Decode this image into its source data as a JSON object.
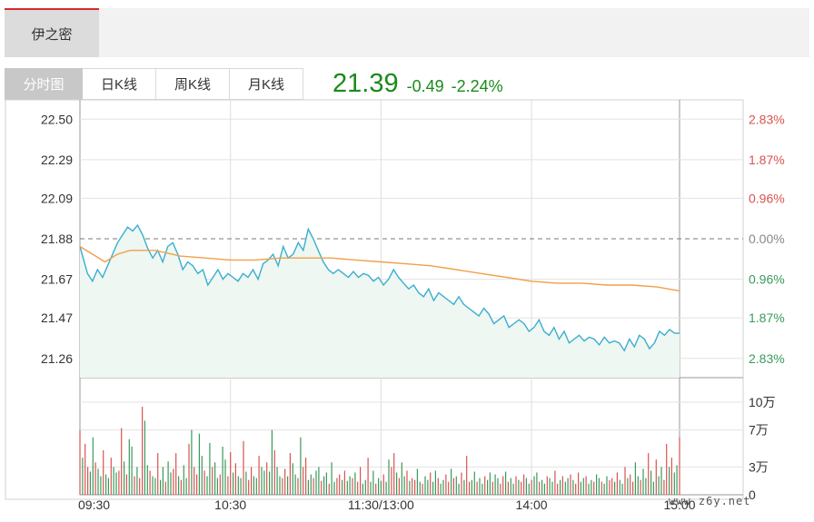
{
  "stock": {
    "name": "伊之密"
  },
  "tabs": [
    {
      "label": "分时图",
      "active": true
    },
    {
      "label": "日K线",
      "active": false
    },
    {
      "label": "周K线",
      "active": false
    },
    {
      "label": "月K线",
      "active": false
    }
  ],
  "quote": {
    "price": "21.39",
    "change": "-0.49",
    "change_pct": "-2.24%",
    "color": "#1b8a1b"
  },
  "watermark": "www.z6y.net",
  "colors": {
    "up": "#d9534f",
    "down": "#3a9a5b",
    "price_line": "#3aaed0",
    "avg_line": "#f0a04b",
    "fill": "#eef7f1"
  },
  "chart_data": {
    "type": "line",
    "title": "",
    "prev_close": 21.88,
    "price_ticks": [
      "22.50",
      "22.29",
      "22.09",
      "21.88",
      "21.67",
      "21.47",
      "21.26"
    ],
    "pct_ticks": [
      "2.83%",
      "1.87%",
      "0.96%",
      "0.00%",
      "0.96%",
      "1.87%",
      "2.83%"
    ],
    "volume_ticks": [
      "10万",
      "7万",
      "3万",
      "0"
    ],
    "x_ticks": [
      "09:30",
      "10:30",
      "11:30/13:00",
      "14:00",
      "15:00"
    ],
    "ylim": [
      21.16,
      22.6
    ],
    "volume_max": 100000,
    "series": [
      {
        "name": "",
        "time_index": [
          0,
          3,
          5,
          7,
          9,
          11,
          13,
          15,
          17,
          19,
          21,
          23,
          25,
          27,
          29,
          31,
          33,
          35,
          37,
          39,
          41,
          43,
          45,
          47,
          49,
          51,
          53,
          55,
          57,
          59,
          61,
          63,
          65,
          67,
          69,
          71,
          73,
          75,
          77,
          79,
          81,
          83,
          85,
          87,
          89,
          91,
          93,
          95,
          97,
          99,
          101,
          103,
          105,
          107,
          109,
          111,
          113,
          115,
          117,
          119,
          121,
          123,
          125,
          127,
          129,
          131,
          133,
          135,
          137,
          139,
          141,
          143,
          145,
          147,
          149,
          151,
          153,
          155,
          157,
          159,
          161,
          163,
          165,
          167,
          169,
          171,
          173,
          175,
          177,
          179,
          181,
          183,
          185,
          187,
          189,
          191,
          193,
          195,
          197,
          199,
          201,
          203,
          205,
          207,
          209,
          211,
          213,
          215,
          217,
          219,
          221,
          223,
          225,
          227,
          229,
          231,
          233,
          235,
          237,
          239
        ],
        "values": [
          21.84,
          21.7,
          21.66,
          21.72,
          21.68,
          21.74,
          21.8,
          21.86,
          21.9,
          21.94,
          21.92,
          21.95,
          21.9,
          21.83,
          21.78,
          21.82,
          21.76,
          21.84,
          21.86,
          21.8,
          21.72,
          21.76,
          21.74,
          21.7,
          21.72,
          21.64,
          21.68,
          21.72,
          21.67,
          21.7,
          21.68,
          21.66,
          21.7,
          21.68,
          21.72,
          21.67,
          21.75,
          21.77,
          21.8,
          21.74,
          21.84,
          21.78,
          21.8,
          21.86,
          21.82,
          21.93,
          21.88,
          21.82,
          21.76,
          21.72,
          21.7,
          21.72,
          21.7,
          21.68,
          21.71,
          21.68,
          21.7,
          21.69,
          21.66,
          21.68,
          21.64,
          21.67,
          21.72,
          21.68,
          21.65,
          21.62,
          21.64,
          21.6,
          21.58,
          21.62,
          21.56,
          21.6,
          21.58,
          21.56,
          21.54,
          21.58,
          21.54,
          21.52,
          21.5,
          21.48,
          21.52,
          21.49,
          21.44,
          21.46,
          21.48,
          21.42,
          21.44,
          21.46,
          21.44,
          21.4,
          21.42,
          21.46,
          21.4,
          21.38,
          21.42,
          21.36,
          21.4,
          21.34,
          21.36,
          21.38,
          21.35,
          21.37,
          21.36,
          21.33,
          21.37,
          21.34,
          21.35,
          21.34,
          21.3,
          21.36,
          21.32,
          21.38,
          21.36,
          21.31,
          21.34,
          21.4,
          21.38,
          21.41,
          21.39,
          21.39
        ]
      },
      {
        "name": "",
        "time_index": [
          0,
          5,
          10,
          15,
          20,
          25,
          30,
          40,
          50,
          60,
          70,
          80,
          90,
          100,
          110,
          120,
          130,
          140,
          150,
          160,
          170,
          180,
          190,
          200,
          210,
          220,
          230,
          239
        ],
        "values": [
          21.84,
          21.8,
          21.76,
          21.8,
          21.82,
          21.82,
          21.82,
          21.79,
          21.78,
          21.77,
          21.77,
          21.78,
          21.78,
          21.78,
          21.77,
          21.76,
          21.75,
          21.74,
          21.72,
          21.7,
          21.68,
          21.66,
          21.65,
          21.65,
          21.64,
          21.64,
          21.63,
          21.61
        ]
      }
    ],
    "volume": [
      70000,
      40000,
      55000,
      30000,
      25000,
      62000,
      35000,
      28000,
      20000,
      48000,
      22000,
      18000,
      40000,
      30000,
      24000,
      26000,
      72000,
      36000,
      22000,
      60000,
      52000,
      20000,
      30000,
      18000,
      95000,
      80000,
      32000,
      26000,
      20000,
      18000,
      45000,
      16000,
      30000,
      14000,
      36000,
      24000,
      28000,
      45000,
      20000,
      16000,
      32000,
      18000,
      55000,
      70000,
      30000,
      22000,
      66000,
      42000,
      26000,
      20000,
      56000,
      30000,
      35000,
      18000,
      22000,
      52000,
      38000,
      20000,
      46000,
      24000,
      34000,
      20000,
      18000,
      58000,
      25000,
      16000,
      30000,
      20000,
      18000,
      42000,
      30000,
      26000,
      35000,
      25000,
      70000,
      48000,
      30000,
      20000,
      18000,
      28000,
      20000,
      45000,
      34000,
      22000,
      18000,
      62000,
      30000,
      40000,
      16000,
      22000,
      18000,
      26000,
      30000,
      15000,
      20000,
      24000,
      12000,
      35000,
      14000,
      18000,
      22000,
      16000,
      26000,
      15000,
      20000,
      18000,
      24000,
      14000,
      30000,
      12000,
      16000,
      40000,
      14000,
      26000,
      12000,
      18000,
      15000,
      22000,
      14000,
      38000,
      30000,
      45000,
      24000,
      18000,
      35000,
      20000,
      26000,
      15000,
      18000,
      16000,
      28000,
      14000,
      12000,
      20000,
      16000,
      24000,
      14000,
      26000,
      18000,
      12000,
      16000,
      22000,
      14000,
      28000,
      18000,
      20000,
      12000,
      24000,
      16000,
      42000,
      14000,
      16000,
      25000,
      14000,
      18000,
      12000,
      20000,
      16000,
      24000,
      14000,
      22000,
      18000,
      12000,
      20000,
      25000,
      14000,
      18000,
      12000,
      20000,
      16000,
      14000,
      22000,
      18000,
      12000,
      16000,
      20000,
      24000,
      14000,
      16000,
      12000,
      20000,
      18000,
      14000,
      26000,
      12000,
      16000,
      20000,
      14000,
      18000,
      22000,
      16000,
      12000,
      24000,
      14000,
      18000,
      20000,
      12000,
      16000,
      14000,
      22000,
      18000,
      14000,
      12000,
      20000,
      16000,
      18000,
      14000,
      24000,
      16000,
      12000,
      30000,
      18000,
      22000,
      14000,
      35000,
      20000,
      16000,
      28000,
      18000,
      45000,
      26000,
      14000,
      38000,
      20000,
      30000,
      16000,
      55000,
      30000,
      40000,
      24000,
      32000,
      62000
    ]
  }
}
